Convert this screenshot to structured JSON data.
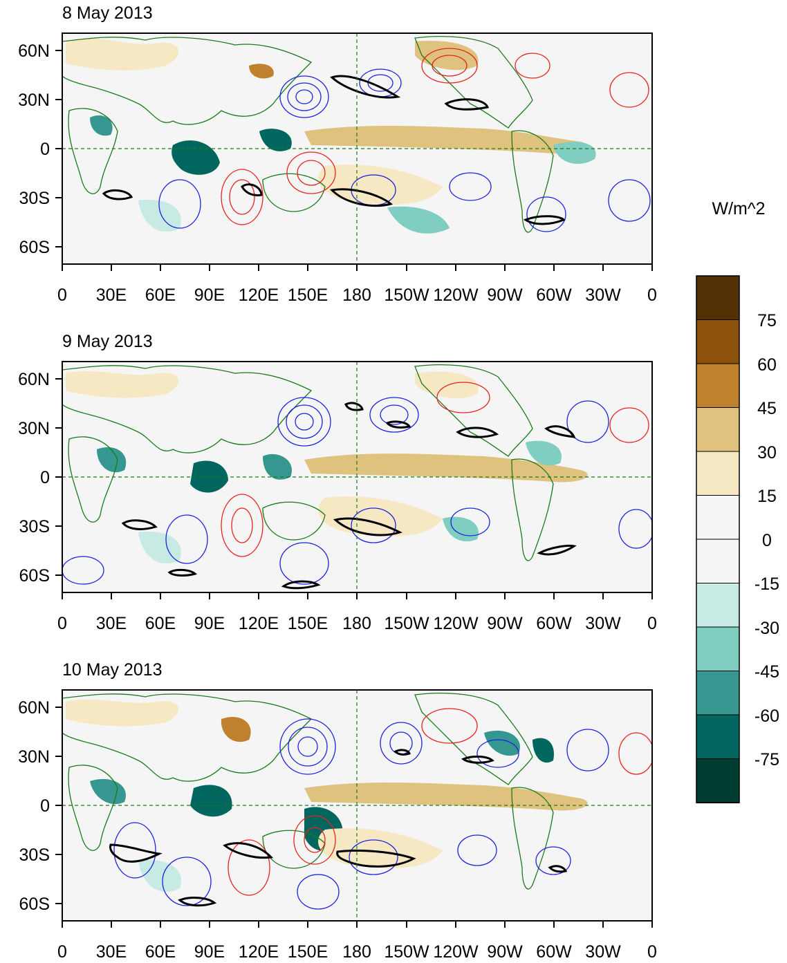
{
  "figure": {
    "colorbar_units": "W/m^2",
    "colorbar_labels": [
      "75",
      "60",
      "45",
      "30",
      "15",
      "0",
      "-15",
      "-30",
      "-45",
      "-60",
      "-75"
    ],
    "colorbar_colors": [
      "#543005",
      "#8c510a",
      "#bf812d",
      "#dfc27d",
      "#f6e8c3",
      "#f5f5f5",
      "#f5f5f5",
      "#c7eae5",
      "#80cdc1",
      "#35978f",
      "#01665e",
      "#003c30"
    ],
    "lat_labels": [
      "60N",
      "30N",
      "0",
      "30S",
      "60S"
    ],
    "lon_labels": [
      "0",
      "30E",
      "60E",
      "90E",
      "120E",
      "150E",
      "180",
      "150W",
      "120W",
      "90W",
      "60W",
      "30W",
      "0"
    ],
    "land_color": "#1a7a1a",
    "positive_contour_color": "#e8221c",
    "negative_contour_color": "#1c22e0",
    "highlight_contour_color": "#000000"
  },
  "panels": [
    {
      "title": "8 May 2013"
    },
    {
      "title": "9 May 2013"
    },
    {
      "title": "10 May 2013"
    }
  ]
}
